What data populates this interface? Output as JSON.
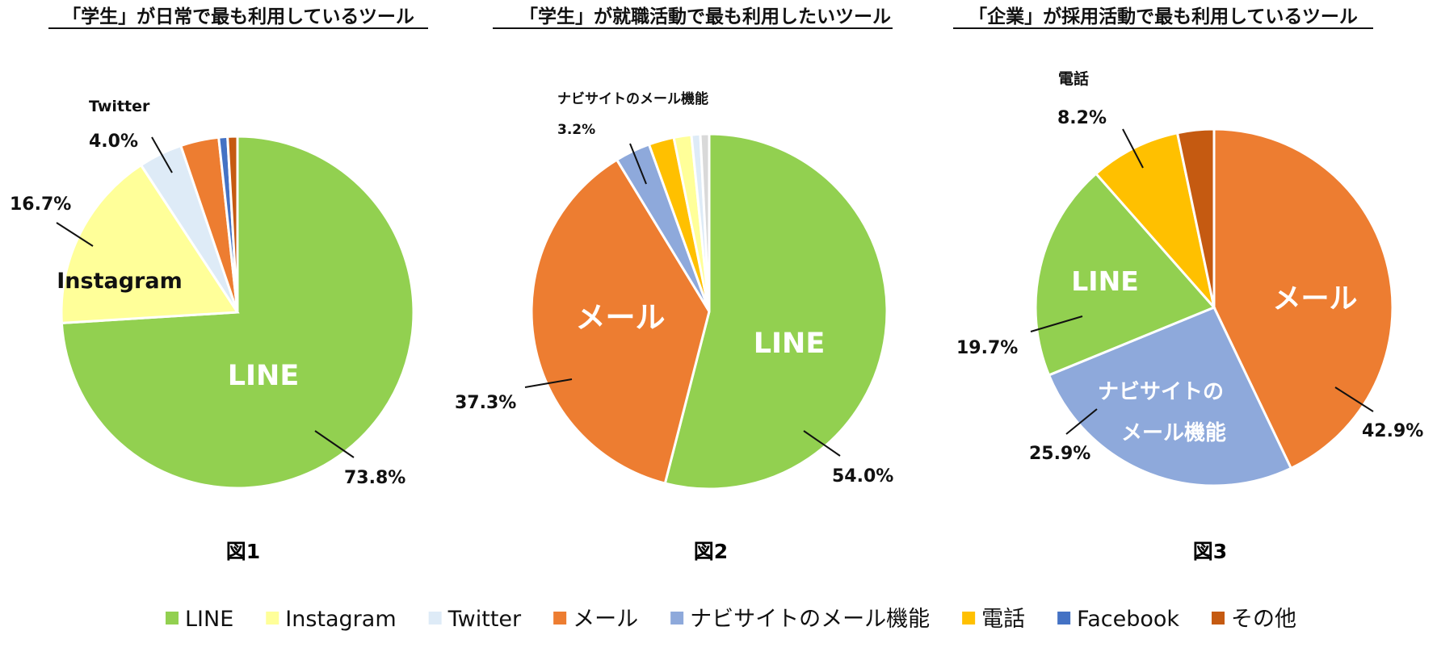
{
  "legend": [
    {
      "name": "LINE",
      "color": "#92D050"
    },
    {
      "name": "Instagram",
      "color": "#FFFF99"
    },
    {
      "name": "Twitter",
      "color": "#DEEBF7"
    },
    {
      "name": "メール",
      "color": "#ED7D31"
    },
    {
      "name": "ナビサイトのメール機能",
      "color": "#8EA9DB"
    },
    {
      "name": "電話",
      "color": "#FFC000"
    },
    {
      "name": "Facebook",
      "color": "#4472C4"
    },
    {
      "name": "その他",
      "color": "#C55A11"
    }
  ],
  "chart_data": [
    {
      "type": "pie",
      "title": "「学生」が日常で最も利用しているツール",
      "figure_label": "図1",
      "slices": [
        {
          "name": "LINE",
          "value": 73.8,
          "color": "#92D050"
        },
        {
          "name": "Instagram",
          "value": 16.7,
          "color": "#FFFF99"
        },
        {
          "name": "Twitter",
          "value": 4.0,
          "color": "#DEEBF7"
        },
        {
          "name": "メール",
          "value": 3.5,
          "color": "#ED7D31"
        },
        {
          "name": "Facebook",
          "value": 0.8,
          "color": "#4472C4"
        },
        {
          "name": "その他",
          "value": 0.9,
          "color": "#C55A11"
        }
      ],
      "labels": [
        {
          "text": "73.8%"
        },
        {
          "text": "16.7%"
        },
        {
          "text": "4.0%"
        },
        {
          "text": "Twitter"
        },
        {
          "text": "LINE"
        },
        {
          "text": "Instagram"
        }
      ]
    },
    {
      "type": "pie",
      "title": "「学生」が就職活動で最も利用したいツール",
      "figure_label": "図2",
      "slices": [
        {
          "name": "LINE",
          "value": 54.0,
          "color": "#92D050"
        },
        {
          "name": "メール",
          "value": 37.3,
          "color": "#ED7D31"
        },
        {
          "name": "ナビサイトのメール機能",
          "value": 3.2,
          "color": "#8EA9DB"
        },
        {
          "name": "電話",
          "value": 2.3,
          "color": "#FFC000"
        },
        {
          "name": "Instagram",
          "value": 1.6,
          "color": "#FFFF99"
        },
        {
          "name": "Twitter",
          "value": 0.8,
          "color": "#DEEBF7"
        },
        {
          "name": "その他",
          "value": 0.8,
          "color": "#D9D9D9"
        }
      ],
      "labels": [
        {
          "text": "54.0%"
        },
        {
          "text": "37.3%"
        },
        {
          "text": "3.2%"
        },
        {
          "text": "ナビサイトのメール機能"
        },
        {
          "text": "LINE"
        },
        {
          "text": "メール"
        }
      ]
    },
    {
      "type": "pie",
      "title": "「企業」が採用活動で最も利用しているツール",
      "figure_label": "図3",
      "slices": [
        {
          "name": "メール",
          "value": 42.9,
          "color": "#ED7D31"
        },
        {
          "name": "ナビサイトのメール機能",
          "value": 25.9,
          "color": "#8EA9DB"
        },
        {
          "name": "LINE",
          "value": 19.7,
          "color": "#92D050"
        },
        {
          "name": "電話",
          "value": 8.2,
          "color": "#FFC000"
        },
        {
          "name": "その他",
          "value": 3.3,
          "color": "#C55A11"
        }
      ],
      "labels": [
        {
          "text": "42.9%"
        },
        {
          "text": "25.9%"
        },
        {
          "text": "19.7%"
        },
        {
          "text": "8.2%"
        },
        {
          "text": "電話"
        },
        {
          "text": "メール"
        },
        {
          "text": "ナビサイトの"
        },
        {
          "text": "メール機能"
        },
        {
          "text": "LINE"
        }
      ]
    }
  ]
}
